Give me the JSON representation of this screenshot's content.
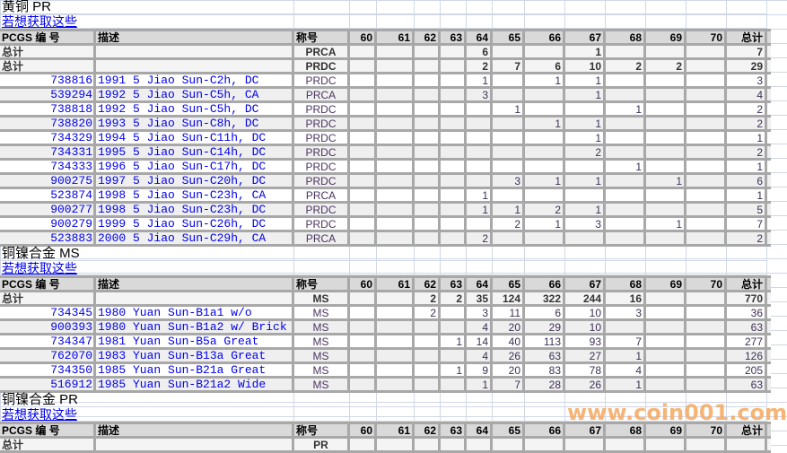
{
  "columns": [
    "PCGS 编 号",
    "描述",
    "称号",
    "60",
    "61",
    "62",
    "63",
    "64",
    "65",
    "66",
    "67",
    "68",
    "69",
    "70",
    "总计"
  ],
  "watermark": "www.coin001.com",
  "colors": {
    "link": "#0000ee",
    "header_bg": "#d9d9d9",
    "grid": "#a8a8a8",
    "watermark": "#f5a860"
  },
  "sections": [
    {
      "title": "黄铜 PR",
      "link": "若想获取这些",
      "totals": [
        {
          "label": "总计",
          "grade": "PRCA",
          "values": [
            "",
            "",
            "",
            "",
            "6",
            "",
            "",
            "1",
            "",
            "",
            "",
            "7"
          ]
        },
        {
          "label": "总计",
          "grade": "PRDC",
          "values": [
            "",
            "",
            "",
            "",
            "2",
            "7",
            "6",
            "10",
            "2",
            "2",
            "",
            "29"
          ]
        }
      ],
      "rows": [
        {
          "pcgs": "738816",
          "desc": "1991 5 Jiao Sun-C2h, DC",
          "grade": "PRDC",
          "values": [
            "",
            "",
            "",
            "",
            "1",
            "",
            "1",
            "1",
            "",
            "",
            "",
            "3"
          ]
        },
        {
          "pcgs": "539294",
          "desc": "1992 5 Jiao Sun-C5h, CA",
          "grade": "PRCA",
          "values": [
            "",
            "",
            "",
            "",
            "3",
            "",
            "",
            "1",
            "",
            "",
            "",
            "4"
          ]
        },
        {
          "pcgs": "738818",
          "desc": "1992 5 Jiao Sun-C5h, DC",
          "grade": "PRDC",
          "values": [
            "",
            "",
            "",
            "",
            "",
            "1",
            "",
            "",
            "1",
            "",
            "",
            "2"
          ]
        },
        {
          "pcgs": "738820",
          "desc": "1993 5 Jiao Sun-C8h, DC",
          "grade": "PRDC",
          "values": [
            "",
            "",
            "",
            "",
            "",
            "",
            "1",
            "1",
            "",
            "",
            "",
            "2"
          ]
        },
        {
          "pcgs": "734329",
          "desc": "1994 5 Jiao Sun-C11h, DC",
          "grade": "PRDC",
          "values": [
            "",
            "",
            "",
            "",
            "",
            "",
            "",
            "1",
            "",
            "",
            "",
            "1"
          ]
        },
        {
          "pcgs": "734331",
          "desc": "1995 5 Jiao Sun-C14h, DC",
          "grade": "PRDC",
          "values": [
            "",
            "",
            "",
            "",
            "",
            "",
            "",
            "2",
            "",
            "",
            "",
            "2"
          ]
        },
        {
          "pcgs": "734333",
          "desc": "1996 5 Jiao Sun-C17h, DC",
          "grade": "PRDC",
          "values": [
            "",
            "",
            "",
            "",
            "",
            "",
            "",
            "",
            "1",
            "",
            "",
            "1"
          ]
        },
        {
          "pcgs": "900275",
          "desc": "1997 5 Jiao Sun-C20h, DC",
          "grade": "PRDC",
          "values": [
            "",
            "",
            "",
            "",
            "",
            "3",
            "1",
            "1",
            "",
            "1",
            "",
            "6"
          ]
        },
        {
          "pcgs": "523874",
          "desc": "1998 5 Jiao Sun-C23h, CA",
          "grade": "PRCA",
          "values": [
            "",
            "",
            "",
            "",
            "1",
            "",
            "",
            "",
            "",
            "",
            "",
            "1"
          ]
        },
        {
          "pcgs": "900277",
          "desc": "1998 5 Jiao Sun-C23h, DC",
          "grade": "PRDC",
          "values": [
            "",
            "",
            "",
            "",
            "1",
            "1",
            "2",
            "1",
            "",
            "",
            "",
            "5"
          ]
        },
        {
          "pcgs": "900279",
          "desc": "1999 5 Jiao Sun-C26h, DC",
          "grade": "PRDC",
          "values": [
            "",
            "",
            "",
            "",
            "",
            "2",
            "1",
            "3",
            "",
            "1",
            "",
            "7"
          ]
        },
        {
          "pcgs": "523883",
          "desc": "2000 5 Jiao Sun-C29h, CA",
          "grade": "PRCA",
          "values": [
            "",
            "",
            "",
            "",
            "2",
            "",
            "",
            "",
            "",
            "",
            "",
            "2"
          ]
        }
      ]
    },
    {
      "title": "铜镍合金 MS",
      "link": "若想获取这些",
      "totals": [
        {
          "label": "总计",
          "grade": "MS",
          "values": [
            "",
            "",
            "2",
            "2",
            "35",
            "124",
            "322",
            "244",
            "16",
            "",
            "",
            "770"
          ]
        }
      ],
      "rows": [
        {
          "pcgs": "734345",
          "desc": "1980 Yuan Sun-B1a1 w/o",
          "grade": "MS",
          "values": [
            "",
            "",
            "2",
            "",
            "3",
            "11",
            "6",
            "10",
            "3",
            "",
            "",
            "36"
          ]
        },
        {
          "pcgs": "900393",
          "desc": "1980 Yuan Sun-B1a2 w/ Brick",
          "grade": "MS",
          "values": [
            "",
            "",
            "",
            "",
            "4",
            "20",
            "29",
            "10",
            "",
            "",
            "",
            "63"
          ]
        },
        {
          "pcgs": "734347",
          "desc": "1981 Yuan Sun-B5a Great",
          "grade": "MS",
          "values": [
            "",
            "",
            "",
            "1",
            "14",
            "40",
            "113",
            "93",
            "7",
            "",
            "",
            "277"
          ]
        },
        {
          "pcgs": "762070",
          "desc": "1983 Yuan Sun-B13a Great",
          "grade": "MS",
          "values": [
            "",
            "",
            "",
            "",
            "4",
            "26",
            "63",
            "27",
            "1",
            "",
            "",
            "126"
          ]
        },
        {
          "pcgs": "734350",
          "desc": "1985 Yuan Sun-B21a Great",
          "grade": "MS",
          "values": [
            "",
            "",
            "",
            "1",
            "9",
            "20",
            "83",
            "78",
            "4",
            "",
            "",
            "205"
          ]
        },
        {
          "pcgs": "516912",
          "desc": "1985 Yuan Sun-B21a2 Wide",
          "grade": "MS",
          "values": [
            "",
            "",
            "",
            "",
            "1",
            "7",
            "28",
            "26",
            "1",
            "",
            "",
            "63"
          ]
        }
      ]
    },
    {
      "title": "铜镍合金 PR",
      "link": "若想获取这些",
      "totals": [
        {
          "label": "总计",
          "grade": "PR",
          "values": [
            "",
            "",
            "",
            "",
            "",
            "",
            "",
            "",
            "",
            "",
            "",
            ""
          ]
        }
      ],
      "rows": []
    }
  ]
}
